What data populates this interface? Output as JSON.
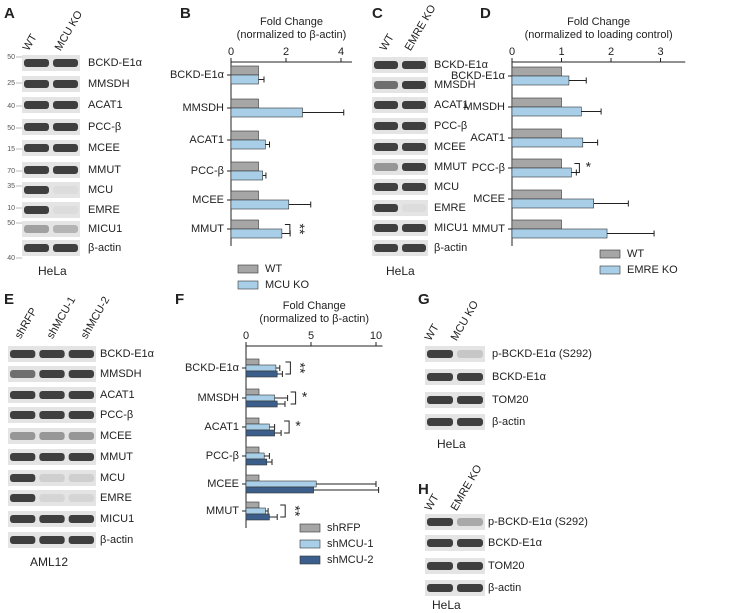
{
  "chart_data": [
    {
      "type": "hbar",
      "panel": "B",
      "title": "Fold Change",
      "subtitle": "(normalized to β-actin)",
      "categories": [
        "BCKD-E1α",
        "MMSDH",
        "ACAT1",
        "PCC-β",
        "MCEE",
        "MMUT"
      ],
      "xlim": [
        0,
        4.4
      ],
      "xticks": [
        0,
        2,
        4
      ],
      "series": [
        {
          "name": "WT",
          "color": "#a6a6a6",
          "values": [
            1,
            1,
            1,
            1,
            1,
            1
          ]
        },
        {
          "name": "MCU KO",
          "color": "#a9cfe8",
          "values": [
            1.0,
            2.6,
            1.25,
            1.15,
            2.1,
            1.85
          ],
          "errors": [
            0.2,
            1.5,
            0.15,
            0.12,
            0.8,
            0.3
          ]
        }
      ],
      "annotations": [
        {
          "text": "**",
          "category": "MMUT"
        }
      ]
    },
    {
      "type": "hbar",
      "panel": "D",
      "title": "Fold Change",
      "subtitle": "(normalized to loading control)",
      "categories": [
        "BCKD-E1α",
        "MMSDH",
        "ACAT1",
        "PCC-β",
        "MCEE",
        "MMUT"
      ],
      "xlim": [
        0,
        3.5
      ],
      "xticks": [
        0,
        1,
        2,
        3
      ],
      "series": [
        {
          "name": "WT",
          "color": "#a6a6a6",
          "values": [
            1,
            1,
            1,
            1,
            1,
            1
          ]
        },
        {
          "name": "EMRE KO",
          "color": "#a9cfe8",
          "values": [
            1.15,
            1.4,
            1.43,
            1.2,
            1.65,
            1.92
          ],
          "errors": [
            0.35,
            0.4,
            0.3,
            0.1,
            0.7,
            0.95
          ]
        }
      ],
      "annotations": [
        {
          "text": "*",
          "category": "PCC-β"
        }
      ]
    },
    {
      "type": "hbar",
      "panel": "F",
      "title": "Fold Change",
      "subtitle": "(normalized to β-actin)",
      "categories": [
        "BCKD-E1α",
        "MMSDH",
        "ACAT1",
        "PCC-β",
        "MCEE",
        "MMUT"
      ],
      "xlim": [
        0,
        10.5
      ],
      "xticks": [
        0,
        5,
        10
      ],
      "series": [
        {
          "name": "shRFP",
          "color": "#a6a6a6",
          "values": [
            1,
            1,
            1,
            1,
            1,
            1
          ]
        },
        {
          "name": "shMCU-1",
          "color": "#a9cfe8",
          "values": [
            2.3,
            2.2,
            1.8,
            1.4,
            5.4,
            1.5
          ],
          "errors": [
            0.3,
            1.0,
            0.4,
            0.4,
            4.6,
            0.2
          ]
        },
        {
          "name": "shMCU-2",
          "color": "#3b5f8a",
          "values": [
            2.4,
            2.4,
            2.2,
            1.6,
            5.2,
            1.8
          ],
          "errors": [
            0.4,
            0.6,
            0.5,
            0.4,
            5.0,
            0.6
          ]
        }
      ],
      "annotations": [
        {
          "text": "**",
          "category": "BCKD-E1α"
        },
        {
          "text": "*",
          "category": "MMSDH"
        },
        {
          "text": "*",
          "category": "ACAT1"
        },
        {
          "text": "**",
          "category": "MMUT"
        }
      ]
    }
  ],
  "blots": [
    {
      "panel": "A",
      "lanes": [
        "WT",
        "MCU KO"
      ],
      "bands": [
        "BCKD-E1α",
        "MMSDH",
        "ACAT1",
        "PCC-β",
        "MCEE",
        "MMUT",
        "MCU",
        "EMRE",
        "MICU1",
        "β-actin"
      ],
      "markers": [
        50,
        25,
        40,
        50,
        15,
        70,
        35,
        10,
        50,
        40
      ],
      "cell_line": "HeLa"
    },
    {
      "panel": "C",
      "lanes": [
        "WT",
        "EMRE KO"
      ],
      "bands": [
        "BCKD-E1α",
        "MMSDH",
        "ACAT1",
        "PCC-β",
        "MCEE",
        "MMUT",
        "MCU",
        "EMRE",
        "MICU1",
        "β-actin"
      ],
      "cell_line": "HeLa"
    },
    {
      "panel": "E",
      "lanes": [
        "shRFP",
        "shMCU-1",
        "shMCU-2"
      ],
      "bands": [
        "BCKD-E1α",
        "MMSDH",
        "ACAT1",
        "PCC-β",
        "MCEE",
        "MMUT",
        "MCU",
        "EMRE",
        "MICU1",
        "β-actin"
      ],
      "cell_line": "AML12"
    },
    {
      "panel": "G",
      "lanes": [
        "WT",
        "MCU KO"
      ],
      "bands": [
        "p-BCKD-E1α (S292)",
        "BCKD-E1α",
        "TOM20",
        "β-actin"
      ],
      "cell_line": "HeLa"
    },
    {
      "panel": "H",
      "lanes": [
        "WT",
        "EMRE KO"
      ],
      "bands": [
        "p-BCKD-E1α (S292)",
        "BCKD-E1α",
        "TOM20",
        "β-actin"
      ],
      "cell_line": "HeLa"
    }
  ]
}
